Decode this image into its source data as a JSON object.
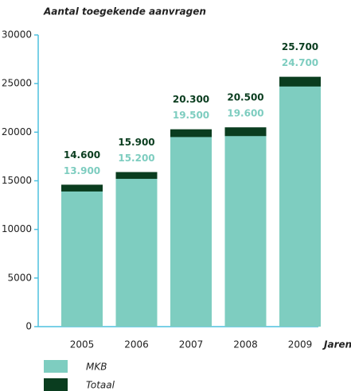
{
  "chart_data": {
    "type": "bar",
    "title": "Aantal toegekende aanvragen",
    "x_label": "Jaren",
    "categories": [
      "2005",
      "2006",
      "2007",
      "2008",
      "2009"
    ],
    "series": [
      {
        "name": "Totaal",
        "color": "#0a3d1f",
        "label_color": "#0a3d1f",
        "values": [
          14600,
          15900,
          20300,
          20500,
          25700
        ],
        "value_labels": [
          "14.600",
          "15.900",
          "20.300",
          "20.500",
          "25.700"
        ]
      },
      {
        "name": "MKB",
        "color": "#7ecdc0",
        "label_color": "#7ecdc0",
        "values": [
          13900,
          15200,
          19500,
          19600,
          24700
        ],
        "value_labels": [
          "13.900",
          "15.200",
          "19.500",
          "19.600",
          "24.700"
        ]
      }
    ],
    "legend_order": [
      1,
      0
    ],
    "ylim": [
      0,
      30000
    ],
    "yticks": [
      0,
      5000,
      10000,
      15000,
      20000,
      25000,
      30000
    ]
  }
}
